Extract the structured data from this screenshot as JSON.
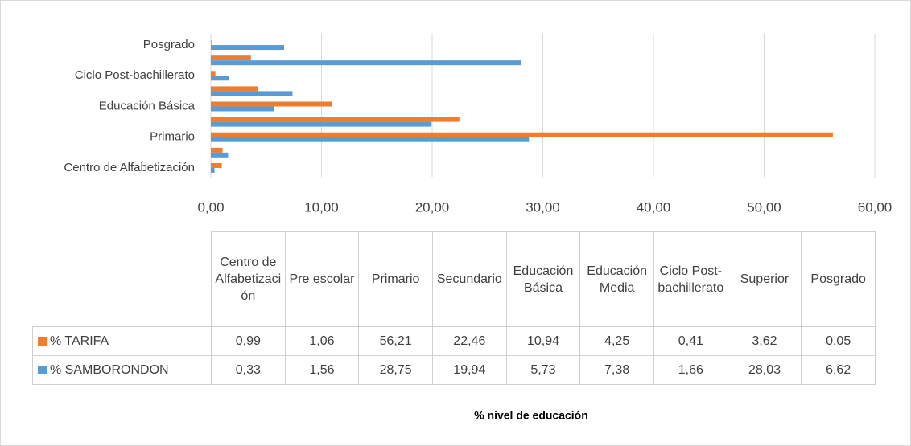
{
  "chart_data": {
    "type": "bar",
    "orientation": "horizontal",
    "title": "% nivel de educación",
    "categories": [
      "Centro de Alfabetización",
      "Pre escolar",
      "Primario",
      "Secundario",
      "Educación Básica",
      "Educación Media",
      "Ciclo Post-bachillerato",
      "Superior",
      "Posgrado"
    ],
    "series": [
      {
        "name": "% TARIFA",
        "color": "#ed7d31",
        "values": [
          0.99,
          1.06,
          56.21,
          22.46,
          10.94,
          4.25,
          0.41,
          3.62,
          0.05
        ],
        "value_labels": [
          "0,99",
          "1,06",
          "56,21",
          "22,46",
          "10,94",
          "4,25",
          "0,41",
          "3,62",
          "0,05"
        ]
      },
      {
        "name": "% SAMBORONDON",
        "color": "#5b9bd5",
        "values": [
          0.33,
          1.56,
          28.75,
          19.94,
          5.73,
          7.38,
          1.66,
          28.03,
          6.62
        ],
        "value_labels": [
          "0,33",
          "1,56",
          "28,75",
          "19,94",
          "5,73",
          "7,38",
          "1,66",
          "28,03",
          "6,62"
        ]
      }
    ],
    "xlim": [
      0,
      60
    ],
    "xticks": [
      {
        "value": 0,
        "label": "0,00"
      },
      {
        "value": 10,
        "label": "10,00"
      },
      {
        "value": 20,
        "label": "20,00"
      },
      {
        "value": 30,
        "label": "30,00"
      },
      {
        "value": 40,
        "label": "40,00"
      },
      {
        "value": 50,
        "label": "50,00"
      },
      {
        "value": 60,
        "label": "60,00"
      }
    ],
    "grid": true
  }
}
